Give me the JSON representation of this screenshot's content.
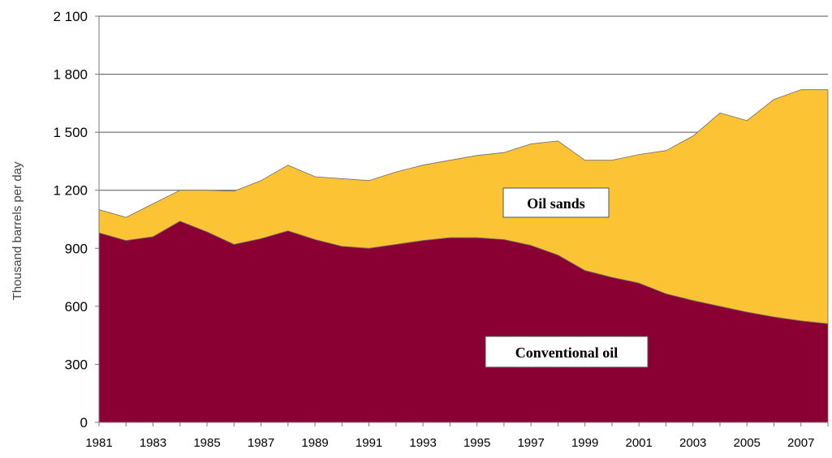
{
  "chart_data": {
    "type": "area",
    "stacked": true,
    "ylabel": "Thousand barrels per day",
    "xlabel": "",
    "ylim": [
      0,
      2100
    ],
    "yticks": [
      0,
      300,
      600,
      900,
      1200,
      1500,
      1800,
      2100
    ],
    "ytick_labels": [
      "0",
      "300",
      "600",
      "900",
      "1 200",
      "1 500",
      "1 800",
      "2 100"
    ],
    "x": [
      1981,
      1982,
      1983,
      1984,
      1985,
      1986,
      1987,
      1988,
      1989,
      1990,
      1991,
      1992,
      1993,
      1994,
      1995,
      1996,
      1997,
      1998,
      1999,
      2000,
      2001,
      2002,
      2003,
      2004,
      2005,
      2006,
      2007,
      2008
    ],
    "xtick_labels": [
      "1981",
      "1983",
      "1985",
      "1987",
      "1989",
      "1991",
      "1993",
      "1995",
      "1997",
      "1999",
      "2001",
      "2003",
      "2005",
      "2007"
    ],
    "grid": "horizontal",
    "series": [
      {
        "name": "Conventional oil",
        "color": "#8b0032",
        "values": [
          980,
          940,
          960,
          1040,
          985,
          920,
          950,
          990,
          945,
          910,
          900,
          920,
          940,
          955,
          955,
          945,
          915,
          865,
          785,
          750,
          720,
          665,
          630,
          600,
          570,
          545,
          525,
          510
        ]
      },
      {
        "name": "Oil sands",
        "color": "#fcc434",
        "values": [
          120,
          120,
          170,
          160,
          215,
          275,
          300,
          340,
          325,
          350,
          350,
          375,
          390,
          400,
          425,
          450,
          525,
          590,
          570,
          605,
          665,
          740,
          850,
          1000,
          990,
          1125,
          1195,
          1210
        ]
      }
    ]
  }
}
